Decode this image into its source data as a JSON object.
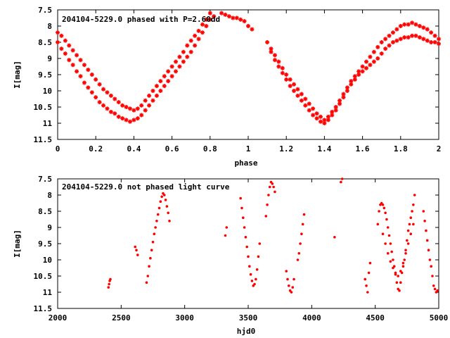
{
  "chart_data": [
    {
      "type": "scatter",
      "title": "204104-5229.0 phased with P=2.60dd",
      "xlabel": "phase",
      "ylabel": "I[mag]",
      "xlim": [
        0,
        2
      ],
      "ylim": [
        11.5,
        7.5
      ],
      "y_inverted": true,
      "x_ticks": [
        0,
        0.2,
        0.4,
        0.6,
        0.8,
        1,
        1.2,
        1.4,
        1.6,
        1.8,
        2
      ],
      "x_tick_labels": [
        "0",
        "0.2",
        "0.4",
        "0.6",
        "0.8",
        "1",
        "1.2",
        "1.4",
        "1.6",
        "1.8",
        "2"
      ],
      "y_ticks": [
        7.5,
        8,
        8.5,
        9,
        9.5,
        10,
        10.5,
        11,
        11.5
      ],
      "y_tick_labels": [
        "7.5",
        "8",
        "8.5",
        "9",
        "9.5",
        "10",
        "10.5",
        "11",
        "11.5"
      ],
      "grid": false,
      "marker": "star",
      "color": "#ff0000",
      "series": [
        {
          "x": [
            0.0,
            0.02,
            0.04,
            0.06,
            0.08,
            0.1,
            0.12,
            0.14,
            0.16,
            0.18,
            0.2,
            0.22,
            0.24,
            0.26,
            0.28,
            0.3,
            0.32,
            0.34,
            0.36,
            0.38,
            0.4,
            0.42,
            0.44,
            0.46,
            0.48,
            0.5,
            0.52,
            0.54,
            0.56,
            0.58,
            0.6,
            0.62,
            0.64,
            0.66,
            0.68,
            0.7,
            0.72,
            0.74,
            0.76,
            0.78,
            0.8,
            0.82
          ],
          "y": [
            8.2,
            8.3,
            8.45,
            8.6,
            8.75,
            8.9,
            9.05,
            9.2,
            9.35,
            9.5,
            9.65,
            9.8,
            9.95,
            10.05,
            10.15,
            10.25,
            10.35,
            10.45,
            10.5,
            10.55,
            10.6,
            10.55,
            10.45,
            10.3,
            10.15,
            10.0,
            9.85,
            9.7,
            9.55,
            9.4,
            9.25,
            9.1,
            8.95,
            8.8,
            8.6,
            8.45,
            8.3,
            8.15,
            7.95,
            7.8,
            7.6,
            7.7
          ]
        },
        {
          "x": [
            0.0,
            0.02,
            0.04,
            0.06,
            0.08,
            0.1,
            0.12,
            0.14,
            0.16,
            0.18,
            0.2,
            0.22,
            0.24,
            0.26,
            0.28,
            0.3,
            0.32,
            0.34,
            0.36,
            0.38,
            0.4,
            0.42,
            0.44,
            0.46,
            0.48,
            0.5,
            0.52,
            0.54,
            0.56,
            0.58,
            0.6,
            0.62,
            0.64,
            0.66,
            0.68,
            0.7,
            0.72,
            0.74,
            0.76,
            0.78,
            0.8
          ],
          "y": [
            8.5,
            8.7,
            8.85,
            9.05,
            9.2,
            9.4,
            9.55,
            9.75,
            9.9,
            10.05,
            10.2,
            10.35,
            10.45,
            10.55,
            10.65,
            10.7,
            10.8,
            10.85,
            10.9,
            10.95,
            10.9,
            10.85,
            10.75,
            10.6,
            10.45,
            10.3,
            10.15,
            10.0,
            9.85,
            9.7,
            9.55,
            9.4,
            9.25,
            9.1,
            8.95,
            8.8,
            8.6,
            8.4,
            8.2,
            8.0,
            7.8
          ]
        },
        {
          "x": [
            0.86,
            0.88,
            0.9,
            0.92,
            0.94,
            0.96,
            0.98,
            1.0,
            1.02
          ],
          "y": [
            7.6,
            7.65,
            7.7,
            7.75,
            7.75,
            7.8,
            7.85,
            8.0,
            8.1
          ]
        },
        {
          "x": [
            1.1,
            1.12,
            1.14,
            1.16,
            1.18,
            1.2,
            1.22,
            1.24,
            1.26,
            1.28,
            1.3,
            1.32,
            1.34,
            1.36,
            1.38,
            1.4,
            1.42,
            1.44,
            1.46,
            1.48,
            1.5,
            1.52,
            1.54,
            1.56,
            1.58,
            1.6,
            1.62,
            1.64,
            1.66,
            1.68,
            1.7,
            1.72,
            1.74,
            1.76,
            1.78,
            1.8,
            1.82,
            1.84,
            1.86,
            1.88,
            1.9,
            1.92,
            1.94,
            1.96,
            1.98,
            2.0
          ],
          "y": [
            8.5,
            8.7,
            8.9,
            9.1,
            9.3,
            9.5,
            9.65,
            9.8,
            9.95,
            10.1,
            10.25,
            10.4,
            10.55,
            10.7,
            10.8,
            10.9,
            10.8,
            10.65,
            10.5,
            10.3,
            10.1,
            9.9,
            9.7,
            9.55,
            9.4,
            9.25,
            9.1,
            8.95,
            8.8,
            8.65,
            8.5,
            8.4,
            8.3,
            8.2,
            8.1,
            8.0,
            7.95,
            7.95,
            7.9,
            7.95,
            8.0,
            8.05,
            8.1,
            8.2,
            8.3,
            8.4
          ]
        },
        {
          "x": [
            1.12,
            1.14,
            1.16,
            1.18,
            1.2,
            1.22,
            1.24,
            1.26,
            1.28,
            1.3,
            1.32,
            1.34,
            1.36,
            1.38,
            1.4,
            1.42,
            1.44,
            1.46,
            1.48,
            1.5,
            1.52,
            1.54,
            1.56,
            1.58,
            1.6,
            1.62,
            1.64,
            1.66,
            1.68,
            1.7,
            1.72,
            1.74,
            1.76,
            1.78,
            1.8,
            1.82,
            1.84,
            1.86,
            1.88,
            1.9,
            1.92,
            1.94,
            1.96,
            1.98,
            2.0
          ],
          "y": [
            8.8,
            9.05,
            9.25,
            9.45,
            9.65,
            9.85,
            10.0,
            10.15,
            10.3,
            10.45,
            10.6,
            10.75,
            10.85,
            10.95,
            11.0,
            10.9,
            10.75,
            10.6,
            10.4,
            10.2,
            10.0,
            9.8,
            9.65,
            9.5,
            9.4,
            9.3,
            9.2,
            9.1,
            9.0,
            8.85,
            8.7,
            8.6,
            8.5,
            8.45,
            8.4,
            8.35,
            8.35,
            8.3,
            8.3,
            8.35,
            8.4,
            8.45,
            8.5,
            8.5,
            8.55
          ]
        }
      ]
    },
    {
      "type": "scatter",
      "title": "204104-5229.0 not phased light curve",
      "xlabel": "hjd0",
      "ylabel": "I[mag]",
      "xlim": [
        2000,
        5000
      ],
      "ylim": [
        11.5,
        7.5
      ],
      "y_inverted": true,
      "x_ticks": [
        2000,
        2500,
        3000,
        3500,
        4000,
        4500,
        5000
      ],
      "x_tick_labels": [
        "2000",
        "2500",
        "3000",
        "3500",
        "4000",
        "4500",
        "5000"
      ],
      "y_ticks": [
        7.5,
        8,
        8.5,
        9,
        9.5,
        10,
        10.5,
        11,
        11.5
      ],
      "y_tick_labels": [
        "7.5",
        "8",
        "8.5",
        "9",
        "9.5",
        "10",
        "10.5",
        "11",
        "11.5"
      ],
      "grid": false,
      "marker": "dot",
      "color": "#ff0000",
      "series": [
        {
          "x": [
            2400,
            2405,
            2410,
            2415
          ],
          "y": [
            10.85,
            10.75,
            10.65,
            10.6
          ]
        },
        {
          "x": [
            2610,
            2620,
            2630
          ],
          "y": [
            9.6,
            9.7,
            9.85
          ]
        },
        {
          "x": [
            2700,
            2710,
            2720,
            2730,
            2740,
            2750,
            2760,
            2770,
            2780,
            2790,
            2800,
            2810,
            2820,
            2830,
            2840,
            2850,
            2860,
            2870,
            2880
          ],
          "y": [
            10.7,
            10.5,
            10.2,
            9.95,
            9.7,
            9.45,
            9.2,
            9.0,
            8.8,
            8.6,
            8.4,
            8.2,
            8.05,
            7.95,
            8.0,
            8.15,
            8.35,
            8.55,
            8.8
          ]
        },
        {
          "x": [
            3320,
            3330
          ],
          "y": [
            9.25,
            9.0
          ]
        },
        {
          "x": [
            3440,
            3450,
            3460,
            3470,
            3480,
            3490,
            3500,
            3510,
            3520,
            3530,
            3540,
            3550,
            3560,
            3570,
            3580,
            3590
          ],
          "y": [
            8.1,
            8.4,
            8.7,
            9.0,
            9.3,
            9.6,
            9.9,
            10.2,
            10.45,
            10.65,
            10.8,
            10.75,
            10.6,
            10.3,
            9.9,
            9.5
          ]
        },
        {
          "x": [
            3640,
            3650,
            3660,
            3670,
            3680,
            3690,
            3700,
            3710
          ],
          "y": [
            8.65,
            8.3,
            8.0,
            7.75,
            7.6,
            7.65,
            7.75,
            7.9
          ]
        },
        {
          "x": [
            3800,
            3810,
            3820,
            3830,
            3840,
            3850,
            3860
          ],
          "y": [
            10.35,
            10.6,
            10.8,
            10.95,
            11.0,
            10.85,
            10.6
          ]
        },
        {
          "x": [
            3890,
            3900,
            3910,
            3920,
            3930,
            3940
          ],
          "y": [
            10.0,
            9.8,
            9.5,
            9.2,
            8.9,
            8.6
          ]
        },
        {
          "x": [
            4180,
            4230,
            4240
          ],
          "y": [
            9.3,
            7.6,
            7.5
          ]
        },
        {
          "x": [
            4420,
            4430,
            4440,
            4450,
            4460
          ],
          "y": [
            10.6,
            10.8,
            11.0,
            10.4,
            10.1
          ]
        },
        {
          "x": [
            4520,
            4530,
            4540,
            4550,
            4560,
            4570,
            4580,
            4590,
            4600,
            4610,
            4620,
            4630,
            4640,
            4650,
            4660,
            4670,
            4680,
            4690,
            4700,
            4710,
            4720,
            4730,
            4740,
            4750,
            4760,
            4770,
            4780,
            4790,
            4800,
            4810
          ],
          "y": [
            8.9,
            8.5,
            8.3,
            8.25,
            8.3,
            8.4,
            8.55,
            8.75,
            9.0,
            9.25,
            9.5,
            9.75,
            10.0,
            10.2,
            10.45,
            10.7,
            10.9,
            10.95,
            10.7,
            10.4,
            10.2,
            10.0,
            9.7,
            9.4,
            9.1,
            8.9,
            8.7,
            8.5,
            8.3,
            8.0
          ]
        },
        {
          "x": [
            4560,
            4580,
            4600,
            4620,
            4640,
            4660,
            4680,
            4700,
            4720,
            4740,
            4760,
            4780,
            4800
          ],
          "y": [
            9.2,
            9.5,
            9.8,
            10.05,
            10.25,
            10.4,
            10.5,
            10.35,
            10.1,
            9.8,
            9.5,
            9.2,
            8.9
          ]
        },
        {
          "x": [
            4880,
            4890,
            4900,
            4910,
            4920,
            4930,
            4940,
            4950,
            4960,
            4970,
            4980,
            4990
          ],
          "y": [
            8.5,
            8.8,
            9.1,
            9.4,
            9.7,
            10.0,
            10.2,
            10.5,
            10.8,
            10.9,
            11.0,
            10.95
          ]
        }
      ]
    }
  ]
}
